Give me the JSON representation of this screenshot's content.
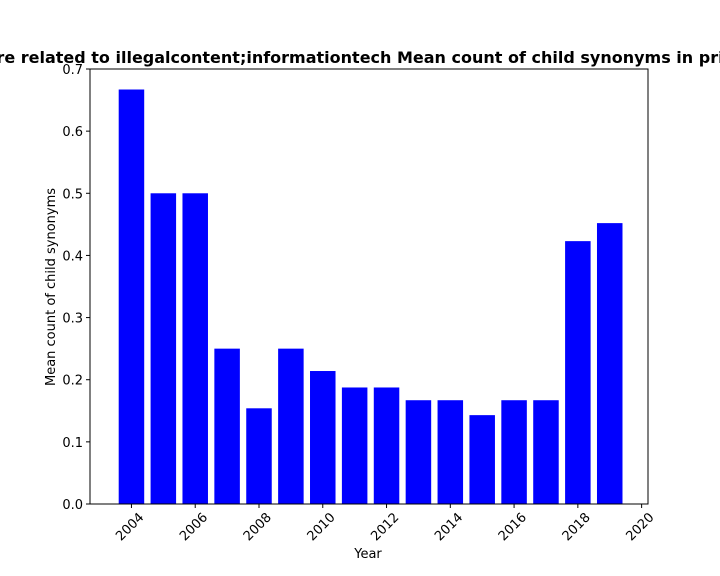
{
  "chart_data": {
    "type": "bar",
    "title": "re related to illegalcontent;informationtech Mean count of child synonyms in pri",
    "xlabel": "Year",
    "ylabel": "Mean count of child synonyms",
    "x": [
      2004,
      2005,
      2006,
      2007,
      2008,
      2009,
      2010,
      2011,
      2012,
      2013,
      2014,
      2015,
      2016,
      2017,
      2018,
      2019
    ],
    "values": [
      0.667,
      0.5,
      0.5,
      0.25,
      0.154,
      0.25,
      0.214,
      0.1875,
      0.1875,
      0.167,
      0.167,
      0.143,
      0.167,
      0.167,
      0.423,
      0.452
    ],
    "xlim": [
      2002.7,
      2020.2
    ],
    "ylim": [
      0,
      0.7
    ],
    "xticks": [
      "2004",
      "2006",
      "2008",
      "2010",
      "2012",
      "2014",
      "2016",
      "2018",
      "2020"
    ],
    "yticks": [
      "0.0",
      "0.1",
      "0.2",
      "0.3",
      "0.4",
      "0.5",
      "0.6",
      "0.7"
    ],
    "bar_color": "#0000ff",
    "grid": false,
    "legend": "none"
  }
}
